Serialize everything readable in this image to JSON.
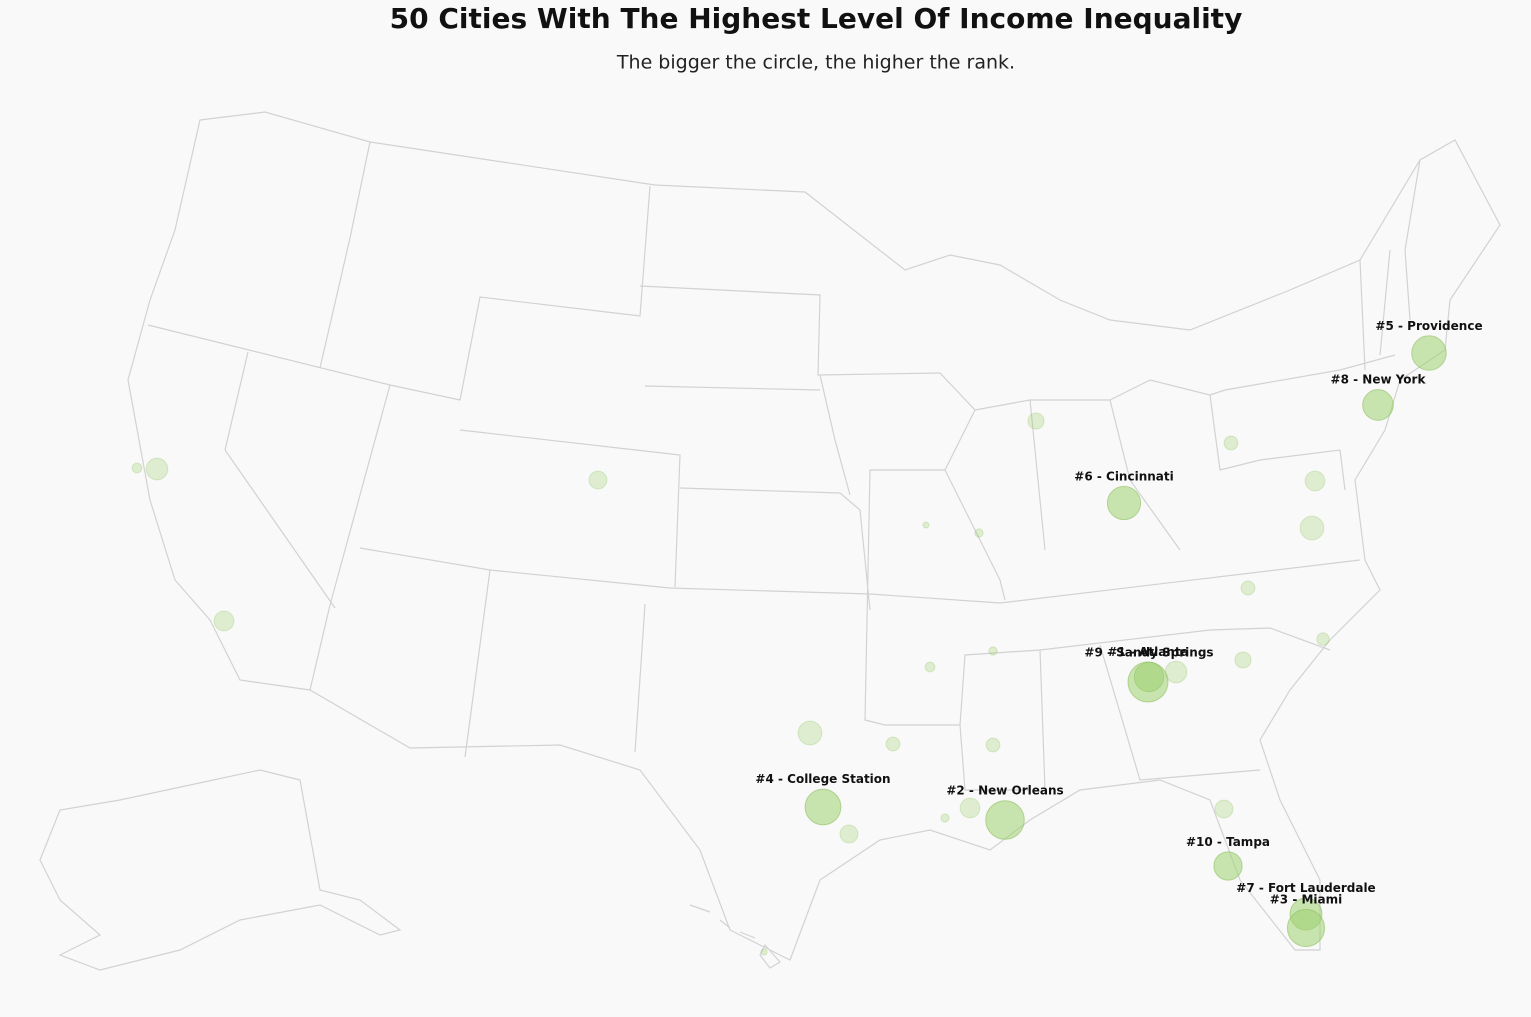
{
  "title": "50 Cities With The Highest Level Of Income Inequality",
  "subtitle": "The bigger the circle, the higher the rank.",
  "cities": [
    {
      "label": "#1 - Atlanta",
      "rank": 1
    },
    {
      "label": "#2 - New Orleans",
      "rank": 2
    },
    {
      "label": "#3 - Miami",
      "rank": 3
    },
    {
      "label": "#4 - College Station",
      "rank": 4
    },
    {
      "label": "#5 - Providence",
      "rank": 5
    },
    {
      "label": "#6 - Cincinnati",
      "rank": 6
    },
    {
      "label": "#7 - Fort Lauderdale",
      "rank": 7
    },
    {
      "label": "#8 - New York",
      "rank": 8
    },
    {
      "label": "#9 - Sandy Springs",
      "rank": 9
    },
    {
      "label": "#10 - Tampa",
      "rank": 10
    },
    {
      "rank": 16
    },
    {
      "rank": 31
    },
    {
      "rank": 18
    },
    {
      "rank": 20
    },
    {
      "rank": 22
    },
    {
      "rank": 25
    },
    {
      "rank": 18
    },
    {
      "rank": 14
    },
    {
      "rank": 25
    },
    {
      "rank": 27
    },
    {
      "rank": 22
    },
    {
      "rank": 16
    },
    {
      "rank": 14
    },
    {
      "rank": 20
    },
    {
      "rank": 25
    },
    {
      "rank": 25
    },
    {
      "rank": 18
    },
    {
      "rank": 20
    },
    {
      "rank": 31
    },
    {
      "rank": 39
    },
    {
      "rank": 34
    },
    {
      "rank": 34
    },
    {
      "rank": 39
    },
    {
      "rank": 34
    }
  ]
}
